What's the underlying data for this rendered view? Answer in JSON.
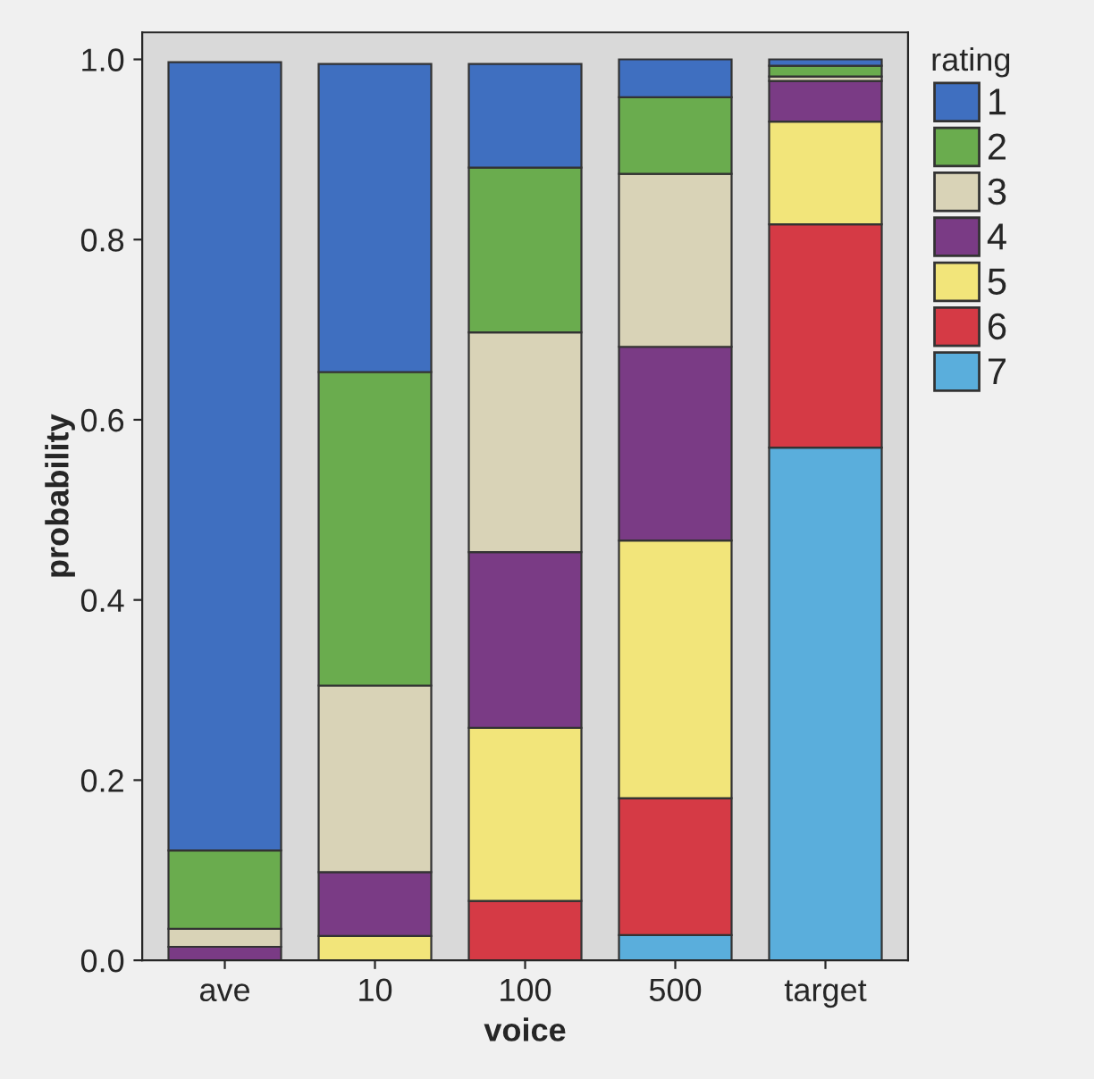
{
  "chart_data": {
    "type": "bar",
    "stacked": true,
    "xlabel": "voice",
    "ylabel": "probability",
    "legend_title": "rating",
    "legend": "right",
    "categories": [
      "ave",
      "10",
      "100",
      "500",
      "target"
    ],
    "ylim": [
      0,
      1.03
    ],
    "yticks": [
      {
        "value": 0,
        "label": "0.0"
      },
      {
        "value": 0.2,
        "label": "0.2"
      },
      {
        "value": 0.4,
        "label": "0.4"
      },
      {
        "value": 0.6,
        "label": "0.6"
      },
      {
        "value": 0.8,
        "label": "0.8"
      },
      {
        "value": 1,
        "label": "1.0"
      }
    ],
    "series": [
      {
        "name": "7",
        "color": "#5aaedc",
        "values": [
          0,
          0,
          null,
          0.028,
          0.569
        ]
      },
      {
        "name": "6",
        "color": "#d53a45",
        "values": [
          0,
          null,
          0.066,
          0.152,
          0.248
        ]
      },
      {
        "name": "5",
        "color": "#f2e57a",
        "values": [
          null,
          0.027,
          0.192,
          0.286,
          0.114
        ]
      },
      {
        "name": "4",
        "color": "#7a3b85",
        "values": [
          0.015,
          0.071,
          0.195,
          0.215,
          0.045
        ]
      },
      {
        "name": "3",
        "color": "#d9d3b7",
        "values": [
          0.02,
          0.207,
          0.244,
          0.192,
          0.005
        ]
      },
      {
        "name": "2",
        "color": "#6aac4e",
        "values": [
          0.087,
          0.348,
          0.183,
          0.085,
          0.012
        ]
      },
      {
        "name": "1",
        "color": "#3f6fc0",
        "values": [
          0.875,
          0.342,
          0.115,
          0.042,
          0.007
        ]
      }
    ]
  }
}
